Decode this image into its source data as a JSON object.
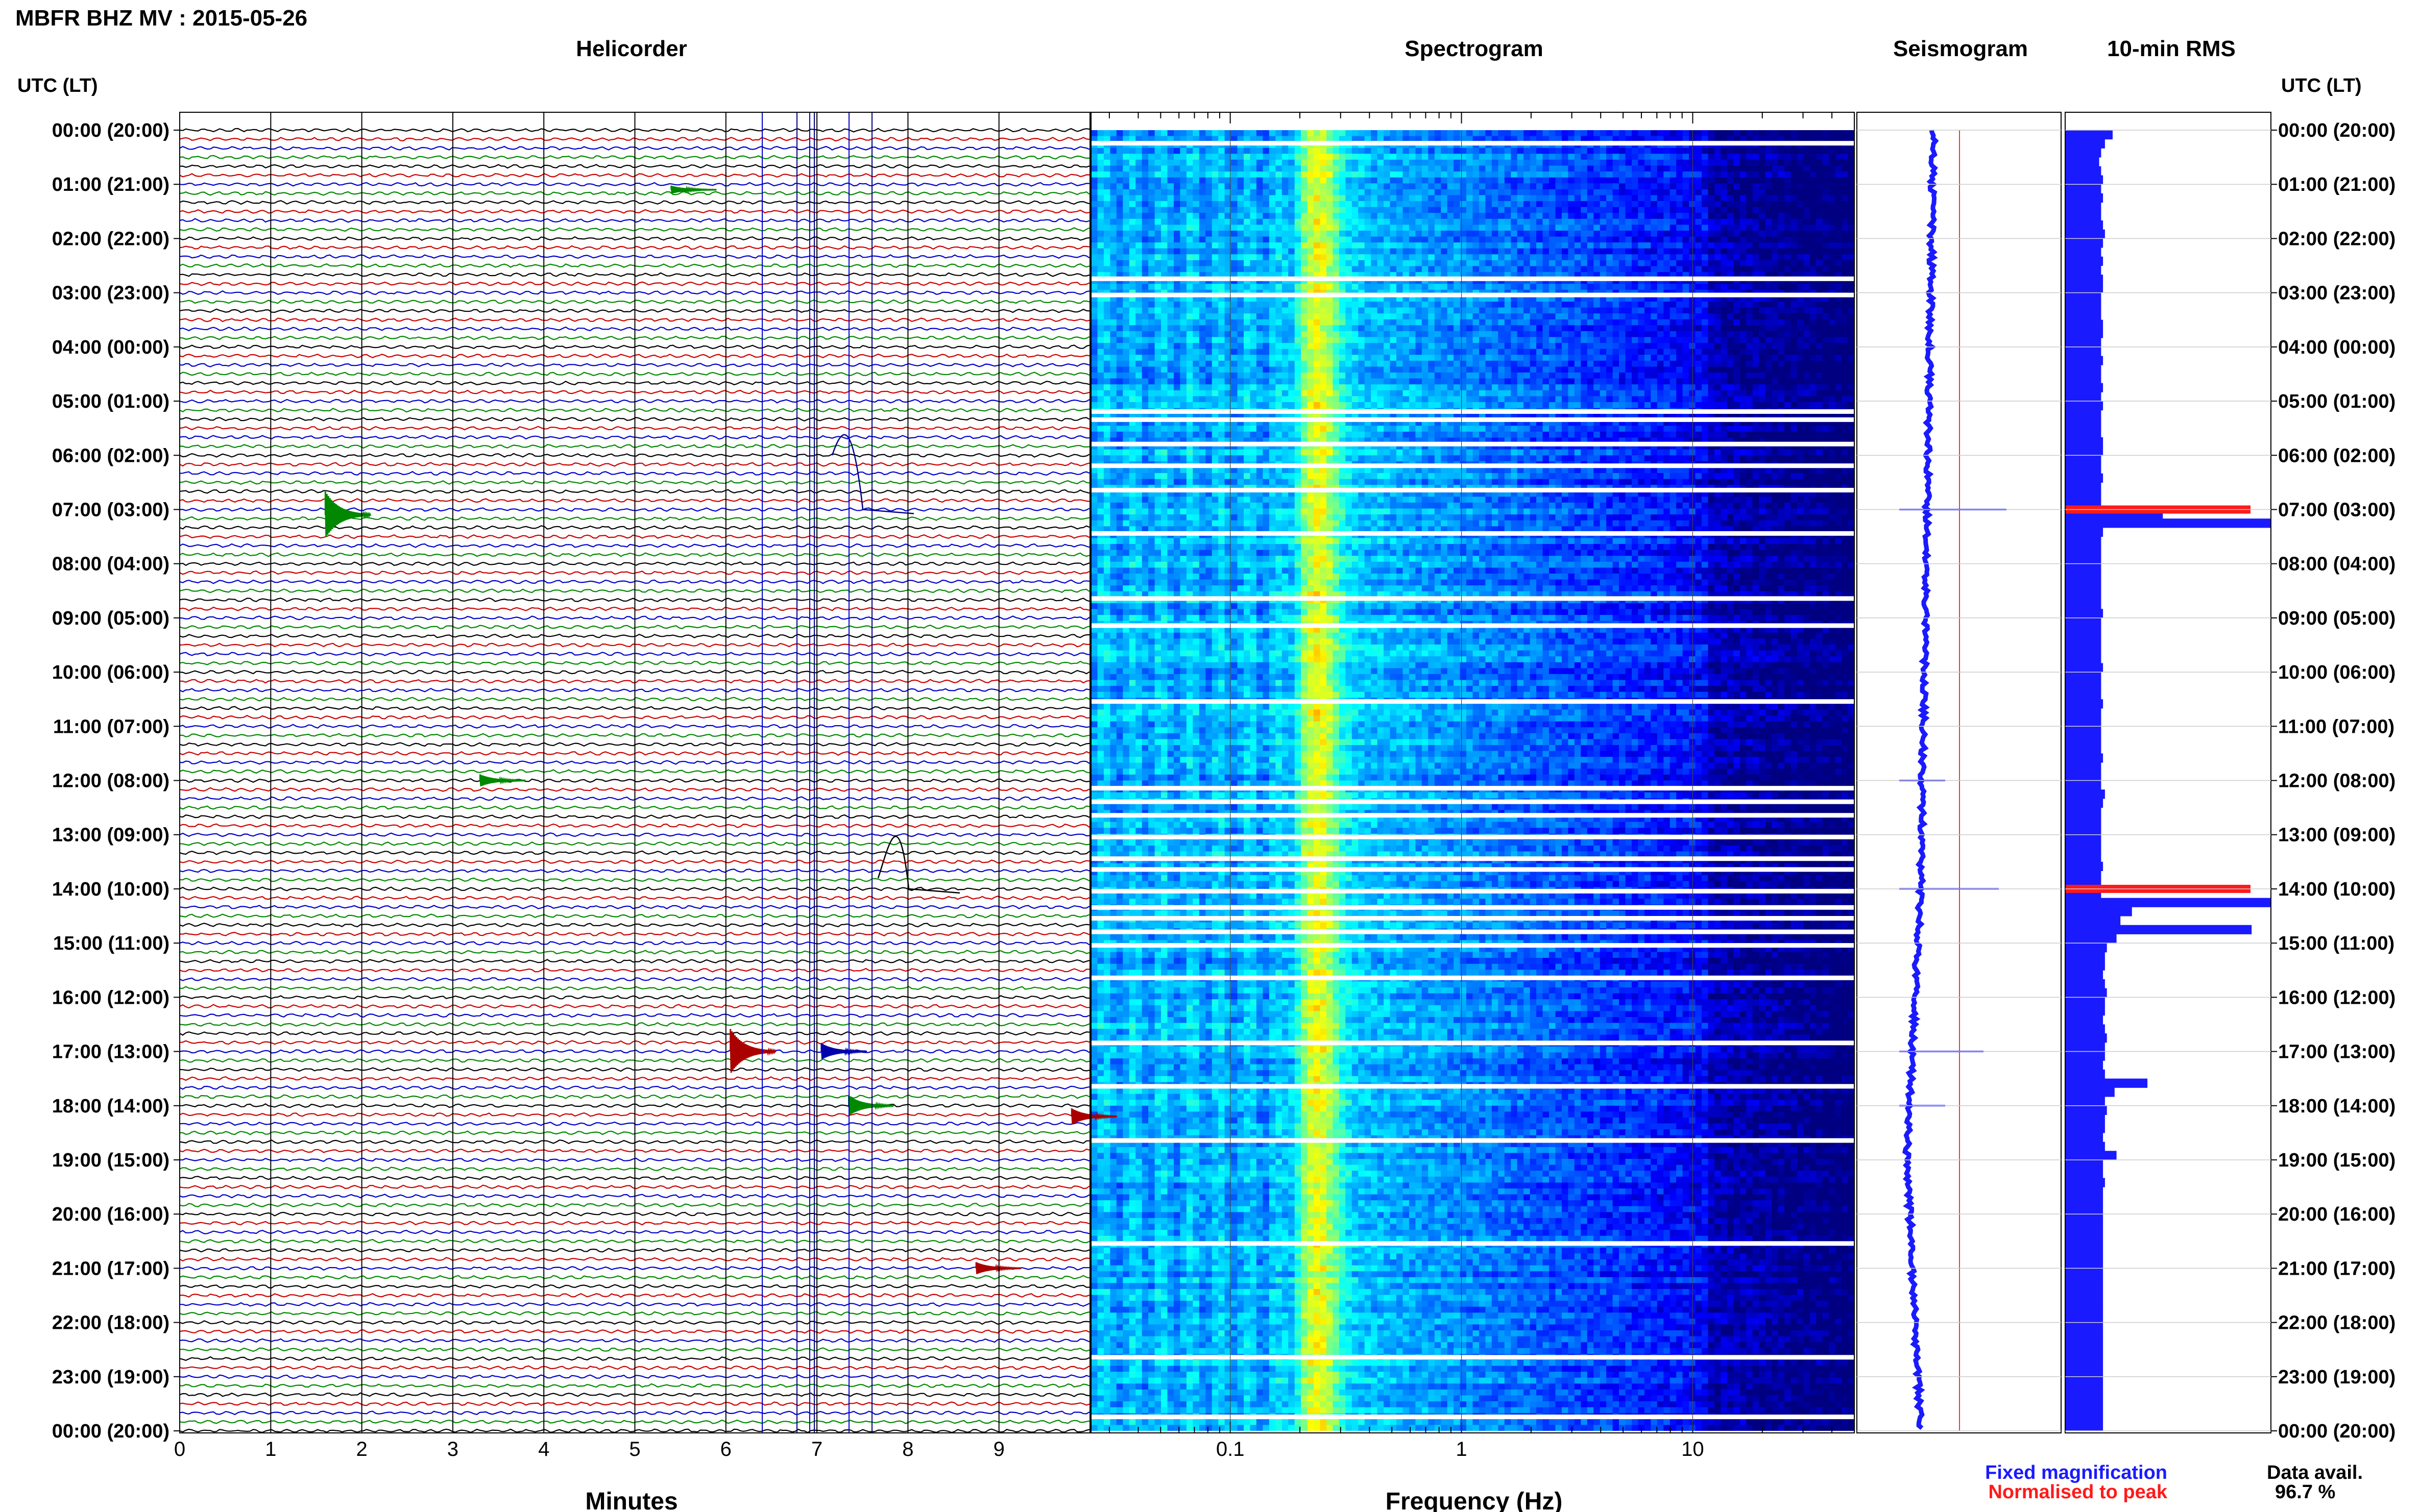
{
  "header": {
    "title": "MBFR BHZ MV : 2015-05-26",
    "panel_helicorder": "Helicorder",
    "panel_spectrogram": "Spectrogram",
    "panel_seismogram": "Seismogram",
    "panel_rms": "10-min RMS"
  },
  "axes": {
    "left_axis_label": "UTC (LT)",
    "right_axis_label": "UTC (LT)",
    "helicorder_xlabel": "Minutes",
    "spectrogram_xlabel": "Frequency (Hz)"
  },
  "legend": {
    "fixed": "Fixed magnification",
    "normalised": "Normalised to peak",
    "fixed_color": "#1a1aff",
    "normalised_color": "#ff1a1a"
  },
  "availability": {
    "label": "Data avail.",
    "value": "96.7 %"
  },
  "chart_data": {
    "type": "helicorder",
    "time_labels": [
      "00:00 (20:00)",
      "01:00 (21:00)",
      "02:00 (22:00)",
      "03:00 (23:00)",
      "04:00 (00:00)",
      "05:00 (01:00)",
      "06:00 (02:00)",
      "07:00 (03:00)",
      "08:00 (04:00)",
      "09:00 (05:00)",
      "10:00 (06:00)",
      "11:00 (07:00)",
      "12:00 (08:00)",
      "13:00 (09:00)",
      "14:00 (10:00)",
      "15:00 (11:00)",
      "16:00 (12:00)",
      "17:00 (13:00)",
      "18:00 (14:00)",
      "19:00 (15:00)",
      "20:00 (16:00)",
      "21:00 (17:00)",
      "22:00 (18:00)",
      "23:00 (19:00)",
      "00:00 (20:00)"
    ],
    "minute_ticks": [
      "0",
      "1",
      "2",
      "3",
      "4",
      "5",
      "6",
      "7",
      "8",
      "9"
    ],
    "freq_ticks": [
      {
        "label": "0.1",
        "value": 0.1
      },
      {
        "label": "1",
        "value": 1
      },
      {
        "label": "10",
        "value": 10
      }
    ],
    "freq_range_hz": [
      0.025,
      50
    ],
    "trace_colors": [
      "#000000",
      "#cc0000",
      "#0000cc",
      "#008800"
    ],
    "traces_per_hour": 6,
    "hours": 24,
    "spectrogram_gaps_hours": [
      0.2,
      2.7,
      3.0,
      5.15,
      5.3,
      5.75,
      6.15,
      6.6,
      7.4,
      8.6,
      9.1,
      10.5,
      12.1,
      12.35,
      12.6,
      13.0,
      13.4,
      13.6,
      14.0,
      14.3,
      14.5,
      14.75,
      15.0,
      15.6,
      16.8,
      17.6,
      18.6,
      20.5,
      22.6,
      23.7
    ],
    "rms_levels": [
      0.18,
      0.14,
      0.12,
      0.11,
      0.12,
      0.13,
      0.12,
      0.13,
      0.12,
      0.12,
      0.13,
      0.14,
      0.13,
      0.12,
      0.13,
      0.12,
      0.13,
      0.13,
      0.12,
      0.12,
      0.12,
      0.13,
      0.13,
      0.12,
      0.12,
      0.13,
      0.12,
      0.12,
      0.13,
      0.12,
      0.13,
      0.12,
      0.12,
      0.12,
      0.13,
      0.13,
      0.12,
      0.12,
      0.13,
      0.12,
      0.12,
      0.12,
      0.44,
      1.0,
      0.13,
      0.12,
      0.12,
      0.12,
      0.12,
      0.12,
      0.12,
      0.12,
      0.12,
      0.13,
      0.12,
      0.12,
      0.12,
      0.12,
      0.12,
      0.13,
      0.12,
      0.12,
      0.12,
      0.13,
      0.12,
      0.12,
      0.12,
      0.12,
      0.12,
      0.13,
      0.12,
      0.12,
      0.12,
      0.14,
      0.13,
      0.12,
      0.12,
      0.12,
      0.12,
      0.12,
      0.12,
      0.13,
      0.12,
      0.12,
      0.12,
      1.0,
      0.28,
      0.22,
      0.9,
      0.2,
      0.15,
      0.14,
      0.14,
      0.13,
      0.14,
      0.15,
      0.14,
      0.14,
      0.13,
      0.14,
      0.15,
      0.14,
      0.14,
      0.13,
      0.14,
      0.36,
      0.19,
      0.14,
      0.15,
      0.14,
      0.14,
      0.13,
      0.14,
      0.2,
      0.13,
      0.13,
      0.14,
      0.13,
      0.13,
      0.13,
      0.13,
      0.13,
      0.13,
      0.13,
      0.13,
      0.13,
      0.13,
      0.13,
      0.13,
      0.13,
      0.13,
      0.13,
      0.13,
      0.13,
      0.13,
      0.13,
      0.13,
      0.13,
      0.13,
      0.13,
      0.13,
      0.13,
      0.13,
      0.13
    ],
    "rms_peak_hours": [
      7.0,
      14.0
    ]
  }
}
